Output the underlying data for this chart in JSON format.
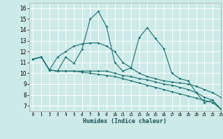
{
  "xlabel": "Humidex (Indice chaleur)",
  "xlim": [
    -0.5,
    23
  ],
  "ylim": [
    6.5,
    16.5
  ],
  "yticks": [
    7,
    8,
    9,
    10,
    11,
    12,
    13,
    14,
    15,
    16
  ],
  "xticks": [
    0,
    1,
    2,
    3,
    4,
    5,
    6,
    7,
    8,
    9,
    10,
    11,
    12,
    13,
    14,
    15,
    16,
    17,
    18,
    19,
    20,
    21,
    22,
    23
  ],
  "bg_color": "#cceae8",
  "grid_color": "#ffffff",
  "line_color": "#1a7070",
  "line1": [
    11.3,
    11.5,
    10.3,
    10.2,
    11.5,
    10.9,
    12.2,
    15.0,
    15.7,
    14.3,
    11.0,
    10.2,
    10.5,
    13.3,
    14.2,
    13.2,
    12.3,
    10.0,
    9.5,
    9.3,
    8.2,
    7.3,
    7.5,
    6.7
  ],
  "line2": [
    11.3,
    11.5,
    10.3,
    11.5,
    12.0,
    12.5,
    12.7,
    12.8,
    12.8,
    12.5,
    12.0,
    11.0,
    10.5,
    10.0,
    9.7,
    9.5,
    9.3,
    9.2,
    9.1,
    9.0,
    8.8,
    8.5,
    8.2,
    7.8
  ],
  "line3": [
    11.3,
    11.5,
    10.3,
    10.2,
    10.2,
    10.2,
    10.2,
    10.2,
    10.2,
    10.2,
    10.0,
    9.8,
    9.7,
    9.5,
    9.4,
    9.2,
    9.0,
    8.9,
    8.7,
    8.5,
    8.2,
    7.8,
    7.5,
    6.7
  ],
  "line4": [
    11.3,
    11.5,
    10.3,
    10.2,
    10.2,
    10.2,
    10.1,
    10.0,
    9.9,
    9.8,
    9.7,
    9.5,
    9.3,
    9.1,
    8.9,
    8.7,
    8.5,
    8.3,
    8.1,
    7.9,
    7.7,
    7.5,
    7.3,
    6.7
  ]
}
